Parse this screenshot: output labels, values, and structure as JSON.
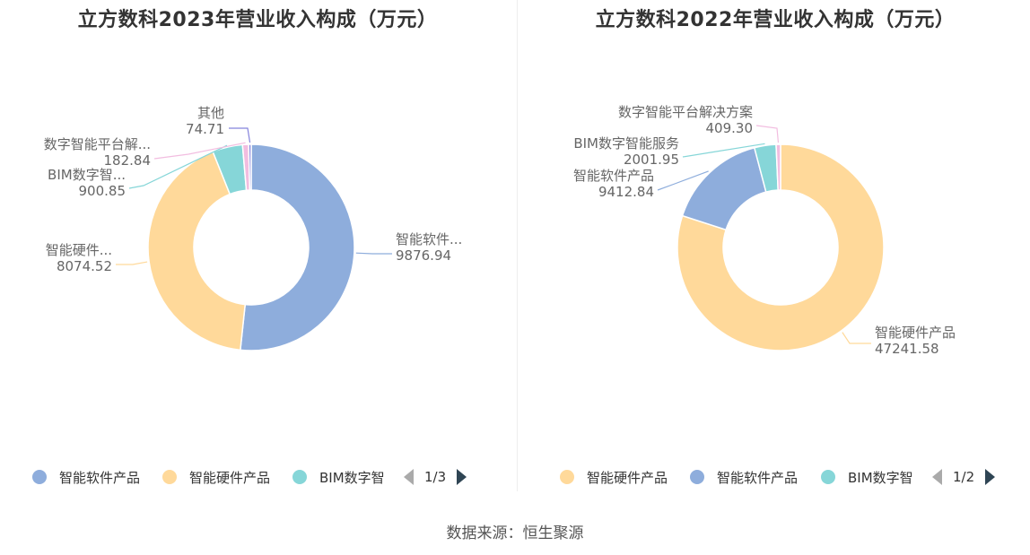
{
  "source_label": "数据来源：恒生聚源",
  "chart_data": [
    {
      "type": "pie",
      "variant": "donut",
      "title": "立方数科2023年营业收入构成（万元）",
      "categories": [
        "智能软件产品",
        "智能硬件产品",
        "BIM数字智能服务",
        "数字智能平台解决方案",
        "其他"
      ],
      "values": [
        9876.94,
        8074.52,
        900.85,
        182.84,
        74.71
      ],
      "colors": [
        "#8eaddc",
        "#ffd99a",
        "#86d6d8",
        "#f2bde0",
        "#8583dc"
      ],
      "slice_labels": [
        {
          "name": "智能软件...",
          "value": "9876.94"
        },
        {
          "name": "智能硬件...",
          "value": "8074.52"
        },
        {
          "name": "BIM数字智...",
          "value": "900.85"
        },
        {
          "name": "数字智能平台解...",
          "value": "182.84"
        },
        {
          "name": "其他",
          "value": "74.71"
        }
      ],
      "legend": {
        "position": "bottom",
        "items": [
          {
            "label": "智能软件产品",
            "color": "#8eaddc"
          },
          {
            "label": "智能硬件产品",
            "color": "#ffd99a"
          },
          {
            "label": "BIM数字智",
            "color": "#86d6d8"
          }
        ],
        "page": "1/3"
      }
    },
    {
      "type": "pie",
      "variant": "donut",
      "title": "立方数科2022年营业收入构成（万元）",
      "categories": [
        "智能硬件产品",
        "智能软件产品",
        "BIM数字智能服务",
        "数字智能平台解决方案"
      ],
      "values": [
        47241.58,
        9412.84,
        2001.95,
        409.3
      ],
      "colors": [
        "#ffd99a",
        "#8eaddc",
        "#86d6d8",
        "#f2bde0"
      ],
      "slice_labels": [
        {
          "name": "智能硬件产品",
          "value": "47241.58"
        },
        {
          "name": "智能软件产品",
          "value": "9412.84"
        },
        {
          "name": "BIM数字智能服务",
          "value": "2001.95"
        },
        {
          "name": "数字智能平台解决方案",
          "value": "409.30"
        }
      ],
      "legend": {
        "position": "bottom",
        "items": [
          {
            "label": "智能硬件产品",
            "color": "#ffd99a"
          },
          {
            "label": "智能软件产品",
            "color": "#8eaddc"
          },
          {
            "label": "BIM数字智",
            "color": "#86d6d8"
          }
        ],
        "page": "1/2"
      }
    }
  ]
}
